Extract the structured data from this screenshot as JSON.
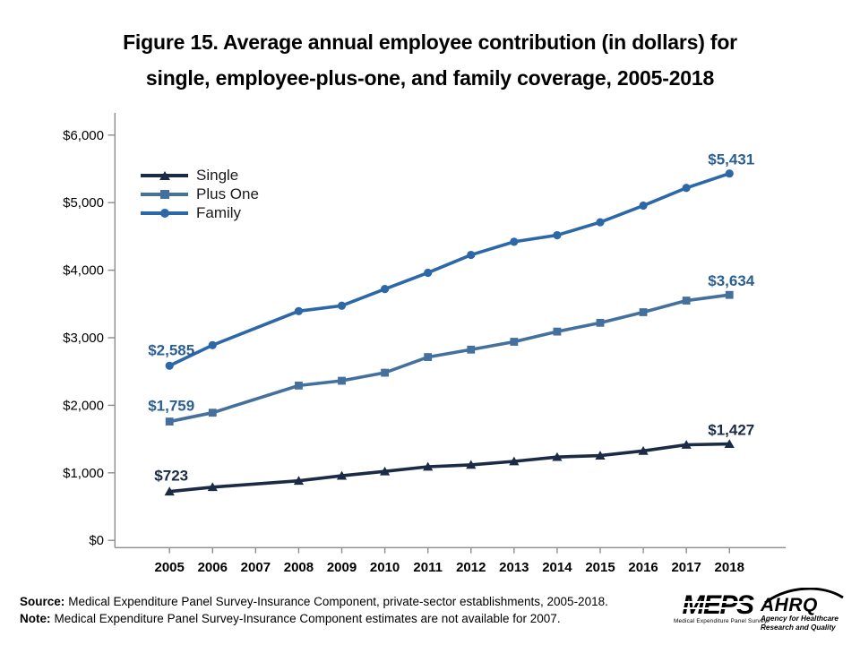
{
  "title": {
    "line1": "Figure 15. Average annual employee contribution (in dollars) for",
    "line2": "single, employee-plus-one, and family coverage, 2005-2018"
  },
  "chart_data": {
    "type": "line",
    "title": "Figure 15. Average annual employee contribution (in dollars) for single, employee-plus-one, and family coverage, 2005-2018",
    "x": [
      2005,
      2006,
      2007,
      2008,
      2009,
      2010,
      2011,
      2012,
      2013,
      2014,
      2015,
      2016,
      2017,
      2018
    ],
    "xlabel": "",
    "ylabel": "",
    "ylim": [
      0,
      6000
    ],
    "y_tick_labels": [
      "$0",
      "$1,000",
      "$2,000",
      "$3,000",
      "$4,000",
      "$5,000",
      "$6,000"
    ],
    "grid": false,
    "legend_position": "upper-left-inside",
    "missing_years": [
      2007
    ],
    "series": [
      {
        "name": "Single",
        "marker": "triangle",
        "color": "#1B2B45",
        "label_color": "#1B2B45",
        "values": [
          723,
          788,
          null,
          882,
          957,
          1021,
          1090,
          1118,
          1170,
          1234,
          1255,
          1325,
          1415,
          1427
        ],
        "first_point_label": "$723",
        "last_point_label": "$1,427"
      },
      {
        "name": "Plus One",
        "marker": "square",
        "color": "#44709D",
        "label_color": "#2B5F94",
        "values": [
          1759,
          1890,
          null,
          2292,
          2363,
          2482,
          2714,
          2824,
          2940,
          3091,
          3221,
          3378,
          3550,
          3634
        ],
        "first_point_label": "$1,759",
        "last_point_label": "$3,634"
      },
      {
        "name": "Family",
        "marker": "circle",
        "color": "#2C67A8",
        "label_color": "#2B5F94",
        "values": [
          2585,
          2890,
          null,
          3394,
          3474,
          3721,
          3962,
          4226,
          4421,
          4518,
          4710,
          4956,
          5218,
          5431
        ],
        "first_point_label": "$2,585",
        "last_point_label": "$5,431"
      }
    ]
  },
  "footer": {
    "source_label": "Source:",
    "source_text": "Medical Expenditure Panel Survey-Insurance Component, private-sector establishments, 2005-2018.",
    "note_label": "Note:",
    "note_text": "Medical Expenditure Panel Survey-Insurance Component estimates are not available for 2007."
  },
  "logos": {
    "meps": {
      "word": "MEPS",
      "tagline": "Medical Expenditure Panel Survey"
    },
    "ahrq": {
      "word": "AHRQ",
      "tagline_line1": "Agency for Healthcare",
      "tagline_line2": "Research and Quality"
    }
  },
  "colors": {
    "axis": "#8C8C8C",
    "tick_text": "#000000",
    "title_text": "#000000",
    "data_label_blue": "#2B5F94",
    "single_navy": "#1B2B45",
    "plus_one_steel": "#44709D",
    "family_blue": "#2C67A8"
  }
}
